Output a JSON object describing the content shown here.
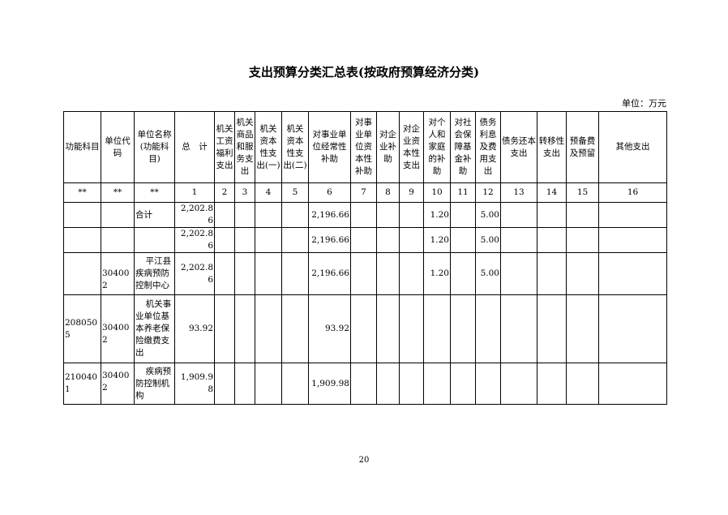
{
  "title": "支出预算分类汇总表(按政府预算经济分类)",
  "unit": "单位：万元",
  "headers": [
    "功能科目",
    "单位代码",
    "单位名称(功能科目)",
    "总　计",
    "机关工资福利支出",
    "机关商品和服务支出",
    "机关资本性支出(一)",
    "机关资本性支出(二)",
    "对事业单位经常性补助",
    "对事业单位资本性补助",
    "对企业补助",
    "对企业资本性支出",
    "对个人和家庭的补助",
    "对社会保障基金补助",
    "债务利息及费用支出",
    "债务还本支出",
    "转移性支出",
    "预备费及预留",
    "其他支出"
  ],
  "index_row": [
    "**",
    "**",
    "**",
    "1",
    "2",
    "3",
    "4",
    "5",
    "6",
    "7",
    "8",
    "9",
    "10",
    "11",
    "12",
    "13",
    "14",
    "15",
    "16"
  ],
  "rows": [
    [
      "",
      "",
      "合计",
      "2,202.86",
      "",
      "",
      "",
      "",
      "2,196.66",
      "",
      "",
      "",
      "1.20",
      "",
      "5.00",
      "",
      "",
      "",
      ""
    ],
    [
      "",
      "",
      "",
      "2,202.86",
      "",
      "",
      "",
      "",
      "2,196.66",
      "",
      "",
      "",
      "1.20",
      "",
      "5.00",
      "",
      "",
      "",
      ""
    ],
    [
      "",
      "304002",
      "平江县疾病预防控制中心",
      "2,202.86",
      "",
      "",
      "",
      "",
      "2,196.66",
      "",
      "",
      "",
      "1.20",
      "",
      "5.00",
      "",
      "",
      "",
      ""
    ],
    [
      "2080505",
      "304002",
      "机关事业单位基本养老保险缴费支出",
      "93.92",
      "",
      "",
      "",
      "",
      "93.92",
      "",
      "",
      "",
      "",
      "",
      "",
      "",
      "",
      "",
      ""
    ],
    [
      "2100401",
      "304002",
      "疾病预防控制机构",
      "1,909.98",
      "",
      "",
      "",
      "",
      "1,909.98",
      "",
      "",
      "",
      "",
      "",
      "",
      "",
      "",
      "",
      ""
    ]
  ],
  "page_number": "20"
}
